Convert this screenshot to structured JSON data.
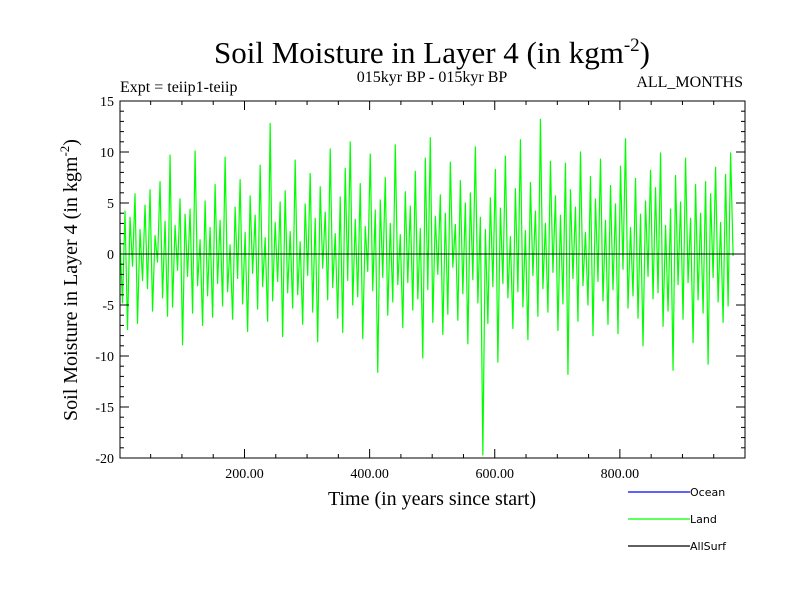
{
  "header": {
    "title_main": "Soil Moisture in Layer 4 (in kgm",
    "title_sup": "-2",
    "title_close": ")",
    "expt": "Expt = teiip1-teiip",
    "period": "015kyr BP - 015kyr BP",
    "months": "ALL_MONTHS"
  },
  "chart_data": {
    "type": "line",
    "xlabel": "Time (in years since start)",
    "ylabel_main": "Soil Moisture in Layer 4 (in kgm",
    "ylabel_sup": "-2",
    "ylabel_close": ")",
    "xlim": [
      1,
      1000
    ],
    "ylim": [
      -20,
      15
    ],
    "x_ticks": [
      200,
      400,
      600,
      800
    ],
    "x_tick_labels": [
      "200.00",
      "400.00",
      "600.00",
      "800.00"
    ],
    "y_ticks": [
      -20,
      -15,
      -10,
      -5,
      0,
      5,
      10,
      15
    ],
    "y_tick_labels": [
      "-20",
      "-15",
      "-10",
      "-5",
      "0",
      "5",
      "10",
      "15"
    ],
    "grid": false,
    "legend_position": "bottom-right",
    "legend": [
      {
        "name": "Ocean",
        "color": "#0000ff"
      },
      {
        "name": "Land",
        "color": "#00ff00"
      },
      {
        "name": "AllSurf",
        "color": "#000000"
      }
    ],
    "series": [
      {
        "name": "Land",
        "color": "#00ff00",
        "x_start": 1,
        "x_step": 4,
        "values": [
          1.5,
          -4.8,
          4.2,
          -7.4,
          3.6,
          -1.2,
          5.9,
          -6.8,
          2.4,
          -2.6,
          4.8,
          -3.4,
          6.3,
          -5.6,
          1.8,
          -0.8,
          7.1,
          -4.3,
          3.2,
          -6.1,
          9.7,
          -5.2,
          2.8,
          -1.6,
          5.4,
          -8.9,
          3.9,
          -2.2,
          4.4,
          -5.8,
          10.1,
          -3.1,
          1.4,
          -7.0,
          5.2,
          -4.1,
          2.6,
          -6.2,
          6.8,
          -2.9,
          3.3,
          -5.1,
          9.5,
          -3.7,
          0.9,
          -6.4,
          4.6,
          -2.4,
          7.3,
          -4.9,
          2.1,
          -7.6,
          5.7,
          -1.9,
          3.8,
          -5.4,
          8.7,
          -3.2,
          1.6,
          -6.6,
          12.8,
          -4.6,
          3.1,
          -2.7,
          5.1,
          -8.1,
          6.2,
          -3.8,
          2.2,
          -5.3,
          9.2,
          -4.0,
          1.2,
          -6.9,
          4.9,
          -2.1,
          7.9,
          -5.7,
          3.5,
          -8.6,
          6.6,
          -1.4,
          4.1,
          -4.5,
          10.3,
          -3.3,
          2.0,
          -6.3,
          5.6,
          -7.7,
          8.4,
          -2.6,
          11.0,
          -5.0,
          3.4,
          -4.2,
          6.9,
          -8.3,
          2.7,
          -1.7,
          9.8,
          -3.6,
          4.3,
          -11.6,
          5.3,
          -2.3,
          7.5,
          -6.0,
          3.0,
          -4.7,
          10.7,
          -3.0,
          1.9,
          -7.2,
          6.1,
          -2.8,
          4.7,
          -5.5,
          8.1,
          -4.4,
          2.5,
          -10.2,
          9.4,
          -3.5,
          11.4,
          -6.7,
          3.7,
          -2.0,
          5.8,
          -7.9,
          4.0,
          -5.9,
          9.0,
          -1.3,
          2.9,
          -6.5,
          7.2,
          -3.9,
          5.0,
          -8.8,
          6.0,
          -2.5,
          10.5,
          -4.8,
          3.6,
          -19.7,
          2.4,
          -6.8,
          5.5,
          -3.2,
          8.3,
          -10.6,
          4.5,
          -2.9,
          9.6,
          -4.3,
          1.7,
          -7.3,
          6.4,
          -3.7,
          11.2,
          -5.2,
          2.3,
          -8.4,
          7.0,
          -2.1,
          4.2,
          -6.1,
          13.2,
          -3.4,
          3.0,
          -5.7,
          9.1,
          -1.8,
          5.7,
          -7.5,
          3.8,
          -4.9,
          8.9,
          -11.8,
          6.3,
          -2.4,
          4.6,
          -6.6,
          10.0,
          -3.1,
          2.1,
          -5.0,
          7.6,
          -8.0,
          5.4,
          -2.7,
          9.3,
          -4.6,
          3.3,
          -6.9,
          6.7,
          -3.5,
          4.9,
          -7.8,
          8.6,
          -1.5,
          11.3,
          -5.3,
          2.6,
          -4.1,
          7.4,
          -6.3,
          3.9,
          -9.0,
          5.2,
          -2.2,
          8.2,
          -4.4,
          6.5,
          -3.8,
          9.9,
          -7.1,
          2.8,
          -5.6,
          4.4,
          -11.4,
          7.7,
          -3.0,
          5.1,
          -6.4,
          9.4,
          -2.8,
          3.5,
          -8.7,
          6.8,
          -4.5,
          4.0,
          -5.8,
          7.1,
          -10.8,
          5.9,
          -2.3,
          8.5,
          -4.7,
          3.1,
          -6.7,
          7.8,
          -5.1,
          9.9,
          -0.2
        ]
      }
    ]
  }
}
